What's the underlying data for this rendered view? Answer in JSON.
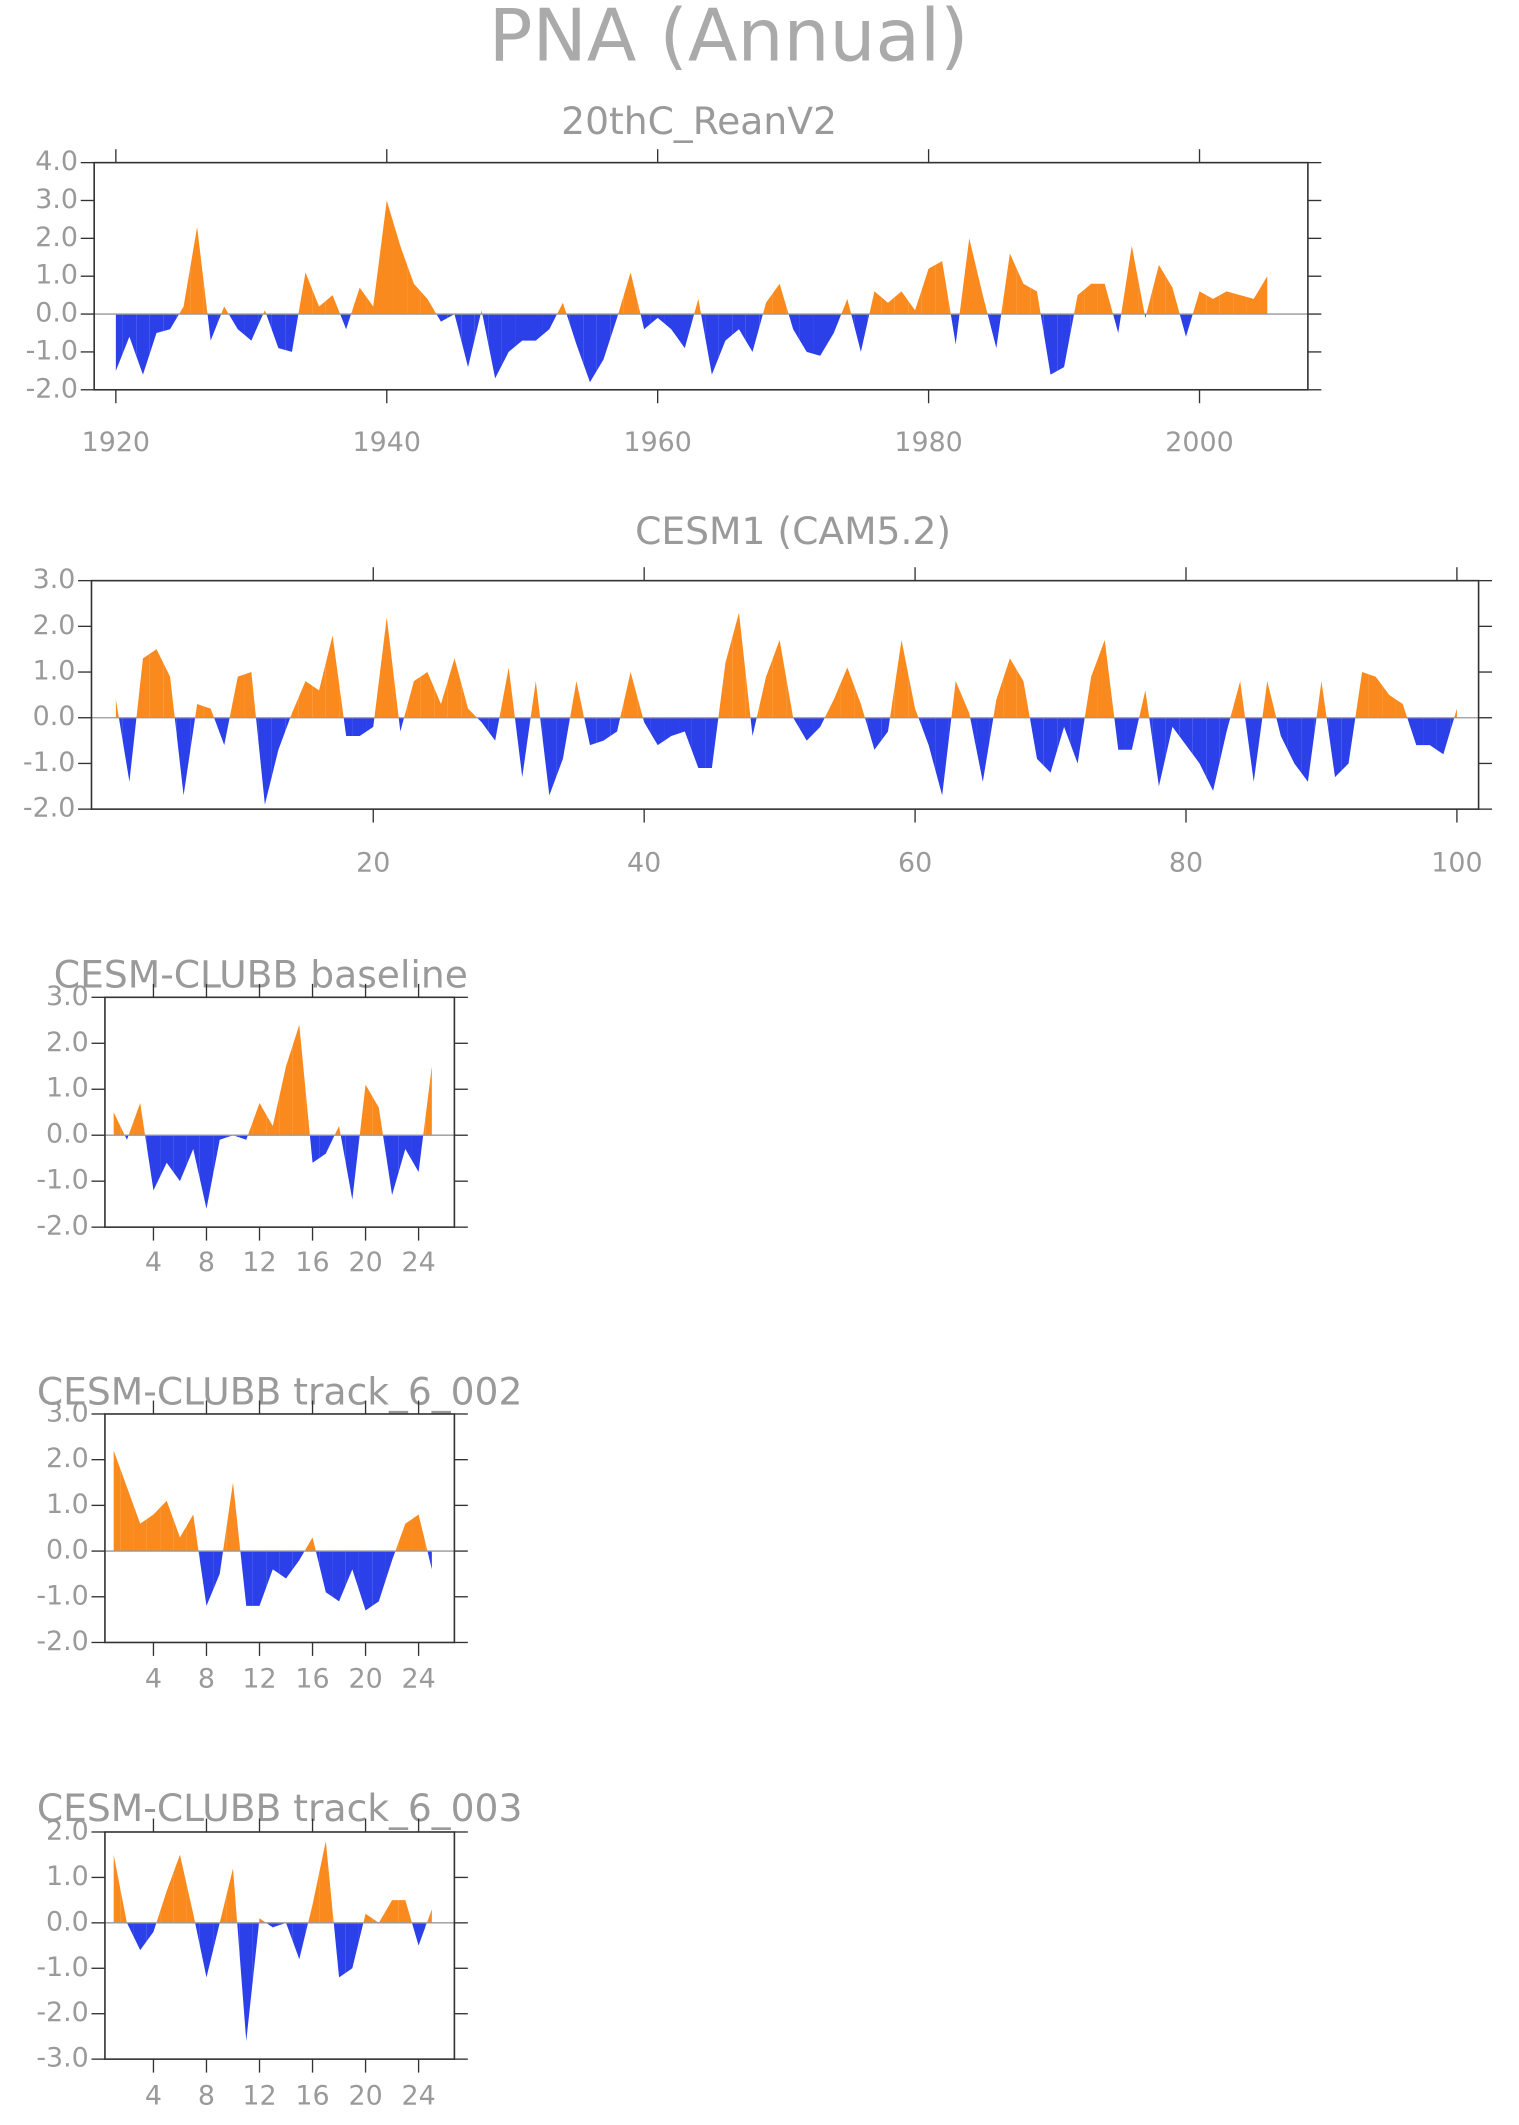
{
  "title": "PNA (Annual)",
  "chart_data": [
    {
      "type": "area",
      "title": "20thC_ReanV2",
      "positive_color": "#fa8a1e",
      "negative_color": "#2b40e8",
      "x": [
        1920,
        1921,
        1922,
        1923,
        1924,
        1925,
        1926,
        1927,
        1928,
        1929,
        1930,
        1931,
        1932,
        1933,
        1934,
        1935,
        1936,
        1937,
        1938,
        1939,
        1940,
        1941,
        1942,
        1943,
        1944,
        1945,
        1946,
        1947,
        1948,
        1949,
        1950,
        1951,
        1952,
        1953,
        1954,
        1955,
        1956,
        1957,
        1958,
        1959,
        1960,
        1961,
        1962,
        1963,
        1964,
        1965,
        1966,
        1967,
        1968,
        1969,
        1970,
        1971,
        1972,
        1973,
        1974,
        1975,
        1976,
        1977,
        1978,
        1979,
        1980,
        1981,
        1982,
        1983,
        1984,
        1985,
        1986,
        1987,
        1988,
        1989,
        1990,
        1991,
        1992,
        1993,
        1994,
        1995,
        1996,
        1997,
        1998,
        1999,
        2000,
        2001,
        2002,
        2003,
        2004,
        2005
      ],
      "values": [
        -1.5,
        -0.6,
        -1.6,
        -0.5,
        -0.4,
        0.2,
        2.3,
        -0.7,
        0.2,
        -0.4,
        -0.7,
        0.1,
        -0.9,
        -1.0,
        1.1,
        0.2,
        0.5,
        -0.4,
        0.7,
        0.2,
        3.0,
        1.8,
        0.8,
        0.4,
        -0.2,
        0.0,
        -1.4,
        0.1,
        -1.7,
        -1.0,
        -0.7,
        -0.7,
        -0.4,
        0.3,
        -0.8,
        -1.8,
        -1.2,
        -0.1,
        1.1,
        -0.4,
        -0.1,
        -0.4,
        -0.9,
        0.4,
        -1.6,
        -0.7,
        -0.4,
        -1.0,
        0.3,
        0.8,
        -0.4,
        -1.0,
        -1.1,
        -0.5,
        0.4,
        -1.0,
        0.6,
        0.3,
        0.6,
        0.1,
        1.2,
        1.4,
        -0.8,
        2.0,
        0.5,
        -0.9,
        1.6,
        0.8,
        0.6,
        -1.6,
        -1.4,
        0.5,
        0.8,
        0.8,
        -0.5,
        1.8,
        -0.1,
        1.3,
        0.7,
        -0.6,
        0.6,
        0.4,
        0.6,
        0.5,
        0.4,
        1.0
      ],
      "xlim": [
        1918.4,
        2008
      ],
      "xticks": [
        1920,
        1940,
        1960,
        1980,
        2000
      ],
      "ylim": [
        -2,
        4
      ],
      "yticks": [
        {
          "value": -2,
          "label": "-2.0"
        },
        {
          "value": -1,
          "label": "-1.0"
        },
        {
          "value": 0,
          "label": "0.0"
        },
        {
          "value": 1,
          "label": "1.0"
        },
        {
          "value": 2,
          "label": "2.0"
        },
        {
          "value": 3,
          "label": "3.0"
        },
        {
          "value": 4,
          "label": "4.0"
        }
      ]
    },
    {
      "type": "area",
      "title": "CESM1 (CAM5.2)",
      "positive_color": "#fa8a1e",
      "negative_color": "#2b40e8",
      "x": [
        1,
        2,
        3,
        4,
        5,
        6,
        7,
        8,
        9,
        10,
        11,
        12,
        13,
        14,
        15,
        16,
        17,
        18,
        19,
        20,
        21,
        22,
        23,
        24,
        25,
        26,
        27,
        28,
        29,
        30,
        31,
        32,
        33,
        34,
        35,
        36,
        37,
        38,
        39,
        40,
        41,
        42,
        43,
        44,
        45,
        46,
        47,
        48,
        49,
        50,
        51,
        52,
        53,
        54,
        55,
        56,
        57,
        58,
        59,
        60,
        61,
        62,
        63,
        64,
        65,
        66,
        67,
        68,
        69,
        70,
        71,
        72,
        73,
        74,
        75,
        76,
        77,
        78,
        79,
        80,
        81,
        82,
        83,
        84,
        85,
        86,
        87,
        88,
        89,
        90,
        91,
        92,
        93,
        94,
        95,
        96,
        97,
        98,
        99,
        100
      ],
      "values": [
        0.4,
        -1.4,
        1.3,
        1.5,
        0.9,
        -1.7,
        0.3,
        0.2,
        -0.6,
        0.9,
        1.0,
        -1.9,
        -0.7,
        0.1,
        0.8,
        0.6,
        1.8,
        -0.4,
        -0.4,
        -0.2,
        2.2,
        -0.3,
        0.8,
        1.0,
        0.3,
        1.3,
        0.2,
        -0.1,
        -0.5,
        1.1,
        -1.3,
        0.8,
        -1.7,
        -0.9,
        0.8,
        -0.6,
        -0.5,
        -0.3,
        1.0,
        -0.1,
        -0.6,
        -0.4,
        -0.3,
        -1.1,
        -1.1,
        1.2,
        2.3,
        -0.4,
        0.9,
        1.7,
        0.0,
        -0.5,
        -0.2,
        0.4,
        1.1,
        0.3,
        -0.7,
        -0.3,
        1.7,
        0.2,
        -0.6,
        -1.7,
        0.8,
        0.1,
        -1.4,
        0.4,
        1.3,
        0.8,
        -0.9,
        -1.2,
        -0.2,
        -1.0,
        0.9,
        1.7,
        -0.7,
        -0.7,
        0.6,
        -1.5,
        -0.2,
        -0.6,
        -1.0,
        -1.6,
        -0.3,
        0.8,
        -1.4,
        0.8,
        -0.4,
        -1.0,
        -1.4,
        0.8,
        -1.3,
        -1.0,
        1.0,
        0.9,
        0.5,
        0.3,
        -0.6,
        -0.6,
        -0.8,
        0.2
      ],
      "xlim": [
        -0.8,
        101.6
      ],
      "xticks": [
        20,
        40,
        60,
        80,
        100
      ],
      "ylim": [
        -2,
        3
      ],
      "yticks": [
        {
          "value": -2,
          "label": "-2.0"
        },
        {
          "value": -1,
          "label": "-1.0"
        },
        {
          "value": 0,
          "label": "0.0"
        },
        {
          "value": 1,
          "label": "1.0"
        },
        {
          "value": 2,
          "label": "2.0"
        },
        {
          "value": 3,
          "label": "3.0"
        }
      ]
    },
    {
      "type": "area",
      "title": "CESM-CLUBB baseline",
      "positive_color": "#fa8a1e",
      "negative_color": "#2b40e8",
      "x": [
        1,
        2,
        3,
        4,
        5,
        6,
        7,
        8,
        9,
        10,
        11,
        12,
        13,
        14,
        15,
        16,
        17,
        18,
        19,
        20,
        21,
        22,
        23,
        24,
        25
      ],
      "values": [
        0.5,
        -0.1,
        0.7,
        -1.2,
        -0.6,
        -1.0,
        -0.3,
        -1.6,
        -0.1,
        0.0,
        -0.1,
        0.7,
        0.2,
        1.5,
        2.4,
        -0.6,
        -0.4,
        0.2,
        -1.4,
        1.1,
        0.6,
        -1.3,
        -0.3,
        -0.8,
        1.5
      ],
      "xlim": [
        0.34,
        26.7
      ],
      "xticks": [
        4,
        8,
        12,
        16,
        20,
        24
      ],
      "ylim": [
        -2,
        3
      ],
      "yticks": [
        {
          "value": -2,
          "label": "-2.0"
        },
        {
          "value": -1,
          "label": "-1.0"
        },
        {
          "value": 0,
          "label": "0.0"
        },
        {
          "value": 1,
          "label": "1.0"
        },
        {
          "value": 2,
          "label": "2.0"
        },
        {
          "value": 3,
          "label": "3.0"
        }
      ]
    },
    {
      "type": "area",
      "title": "CESM-CLUBB track_6_002",
      "positive_color": "#fa8a1e",
      "negative_color": "#2b40e8",
      "x": [
        1,
        2,
        3,
        4,
        5,
        6,
        7,
        8,
        9,
        10,
        11,
        12,
        13,
        14,
        15,
        16,
        17,
        18,
        19,
        20,
        21,
        22,
        23,
        24,
        25
      ],
      "values": [
        2.2,
        1.4,
        0.6,
        0.8,
        1.1,
        0.3,
        0.8,
        -1.2,
        -0.5,
        1.5,
        -1.2,
        -1.2,
        -0.4,
        -0.6,
        -0.2,
        0.3,
        -0.9,
        -1.1,
        -0.4,
        -1.3,
        -1.1,
        -0.2,
        0.6,
        0.8,
        -0.4
      ],
      "xlim": [
        0.34,
        26.7
      ],
      "xticks": [
        4,
        8,
        12,
        16,
        20,
        24
      ],
      "ylim": [
        -2,
        3
      ],
      "yticks": [
        {
          "value": -2,
          "label": "-2.0"
        },
        {
          "value": -1,
          "label": "-1.0"
        },
        {
          "value": 0,
          "label": "0.0"
        },
        {
          "value": 1,
          "label": "1.0"
        },
        {
          "value": 2,
          "label": "2.0"
        },
        {
          "value": 3,
          "label": "3.0"
        }
      ]
    },
    {
      "type": "area",
      "title": "CESM-CLUBB track_6_003",
      "positive_color": "#fa8a1e",
      "negative_color": "#2b40e8",
      "x": [
        1,
        2,
        3,
        4,
        5,
        6,
        7,
        8,
        9,
        10,
        11,
        12,
        13,
        14,
        15,
        16,
        17,
        18,
        19,
        20,
        21,
        22,
        23,
        24,
        25
      ],
      "values": [
        1.5,
        0.0,
        -0.6,
        -0.2,
        0.7,
        1.5,
        0.2,
        -1.2,
        0.0,
        1.2,
        -2.6,
        0.1,
        -0.1,
        0.0,
        -0.8,
        0.4,
        1.8,
        -1.2,
        -1.0,
        0.2,
        0.0,
        0.5,
        0.5,
        -0.5,
        0.3
      ],
      "xlim": [
        0.34,
        26.7
      ],
      "xticks": [
        4,
        8,
        12,
        16,
        20,
        24
      ],
      "ylim": [
        -3,
        2
      ],
      "yticks": [
        {
          "value": -3,
          "label": "-3.0"
        },
        {
          "value": -2,
          "label": "-2.0"
        },
        {
          "value": -1,
          "label": "-1.0"
        },
        {
          "value": 0,
          "label": "0.0"
        },
        {
          "value": 1,
          "label": "1.0"
        },
        {
          "value": 2,
          "label": "2.0"
        }
      ]
    }
  ]
}
